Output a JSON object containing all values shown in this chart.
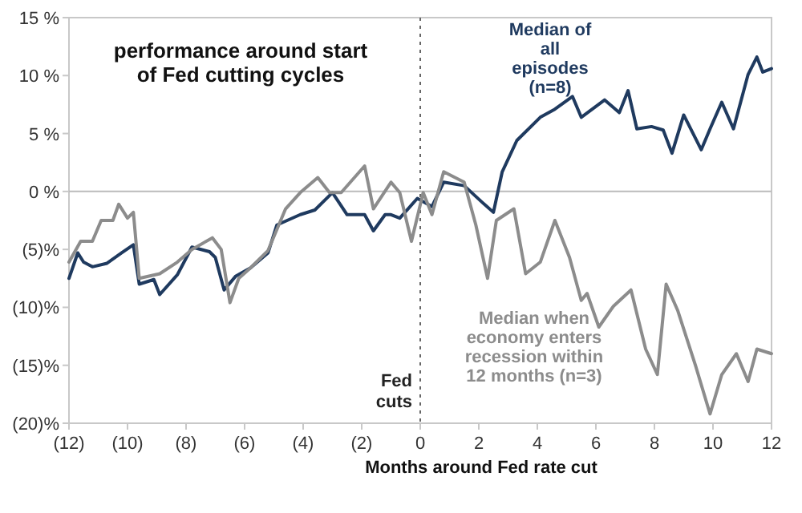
{
  "chart_data": {
    "type": "line",
    "title": "performance around start of Fed cutting cycles",
    "xlabel": "Months around Fed rate cut",
    "xlim": [
      -12,
      12
    ],
    "xticks": [
      {
        "value": -12,
        "label": "(12)"
      },
      {
        "value": -10,
        "label": "(10)"
      },
      {
        "value": -8,
        "label": "(8)"
      },
      {
        "value": -6,
        "label": "(6)"
      },
      {
        "value": -4,
        "label": "(4)"
      },
      {
        "value": -2,
        "label": "(2)"
      },
      0,
      2,
      4,
      6,
      8,
      10,
      12
    ],
    "ylim": [
      -20,
      15
    ],
    "yticks": [
      {
        "value": -20,
        "label": "(20)%"
      },
      {
        "value": -15,
        "label": "(15)%"
      },
      {
        "value": -10,
        "label": "(10)%"
      },
      {
        "value": -5,
        "label": "(5)%"
      },
      {
        "value": 0,
        "label": "0 %"
      },
      {
        "value": 5,
        "label": "5 %"
      },
      {
        "value": 10,
        "label": "10 %"
      },
      {
        "value": 15,
        "label": "15 %"
      }
    ],
    "grid": false,
    "legend": false,
    "line_style": "solid",
    "marker": "none",
    "ref_lines": [
      {
        "axis": "x",
        "value": 0,
        "label": "Fed cuts",
        "color": "#666666",
        "line_style": "dotted"
      },
      {
        "axis": "y",
        "value": 0,
        "color": "#bbbbbb",
        "line_style": "solid"
      }
    ],
    "series": [
      {
        "name": "Median of all episodes (n=8)",
        "color": "#1f3a5f",
        "x": [
          -12,
          -11.7,
          -11.5,
          -11.2,
          -10.7,
          -10.2,
          -9.8,
          -9.6,
          -9.1,
          -8.9,
          -8.3,
          -7.8,
          -7.2,
          -7,
          -6.7,
          -6.3,
          -5.8,
          -5.2,
          -4.9,
          -4.1,
          -3.6,
          -3,
          -2.5,
          -1.9,
          -1.6,
          -1.2,
          -1,
          -0.7,
          -0.1,
          0.4,
          0.8,
          1.5,
          2.1,
          2.5,
          2.8,
          3.3,
          4.1,
          4.6,
          5.2,
          5.5,
          6.3,
          6.8,
          7.1,
          7.4,
          7.9,
          8.3,
          8.6,
          9,
          9.6,
          9.9,
          10.3,
          10.7,
          11.2,
          11.5,
          11.7,
          12
        ],
        "values": [
          -7.5,
          -5.3,
          -6.1,
          -6.5,
          -6.2,
          -5.3,
          -4.6,
          -8,
          -7.6,
          -8.9,
          -7.2,
          -4.8,
          -5.2,
          -5.7,
          -8.5,
          -7.3,
          -6.6,
          -5.3,
          -2.9,
          -2,
          -1.6,
          -0.1,
          -2,
          -2,
          -3.4,
          -2,
          -2,
          -2.3,
          -0.6,
          -1.3,
          0.8,
          0.5,
          -0.9,
          -1.8,
          1.7,
          4.4,
          6.4,
          7.1,
          8.2,
          6.4,
          7.9,
          6.8,
          8.7,
          5.4,
          5.6,
          5.3,
          3.3,
          6.6,
          3.6,
          5.4,
          7.7,
          5.4,
          10.1,
          11.6,
          10.3,
          10.6
        ]
      },
      {
        "name": "Median when economy enters recession within 12 months (n=3)",
        "color": "#8c8c8c",
        "x": [
          -12,
          -11.6,
          -11.2,
          -10.9,
          -10.5,
          -10.3,
          -10,
          -9.8,
          -9.6,
          -8.9,
          -8.3,
          -7.8,
          -7.1,
          -6.8,
          -6.5,
          -6.2,
          -5.8,
          -5.2,
          -4.6,
          -4.1,
          -3.5,
          -3.1,
          -2.7,
          -1.9,
          -1.6,
          -1,
          -0.7,
          -0.3,
          0.1,
          0.4,
          0.8,
          1.5,
          1.9,
          2.3,
          2.6,
          3.2,
          3.6,
          4.1,
          4.6,
          5.1,
          5.5,
          5.7,
          6.1,
          6.6,
          7.2,
          7.7,
          8.1,
          8.4,
          8.8,
          9.4,
          9.9,
          10.3,
          10.8,
          11.2,
          11.5,
          12
        ],
        "values": [
          -6.1,
          -4.3,
          -4.3,
          -2.5,
          -2.5,
          -1.1,
          -2.3,
          -1.8,
          -7.5,
          -7.1,
          -6.1,
          -5,
          -4,
          -5,
          -9.6,
          -7.5,
          -6.6,
          -5.1,
          -1.5,
          -0.1,
          1.2,
          -0.1,
          -0.1,
          2.2,
          -1.5,
          0.8,
          -0.1,
          -4.3,
          -0.1,
          -2,
          1.7,
          0.8,
          -2.9,
          -7.5,
          -2.5,
          -1.5,
          -7.1,
          -6.1,
          -2.5,
          -5.7,
          -9.4,
          -8.8,
          -11.7,
          -9.9,
          -8.5,
          -13.6,
          -15.8,
          -8,
          -10.3,
          -15,
          -19.2,
          -15.8,
          -14,
          -16.4,
          -13.6,
          -14
        ]
      }
    ]
  }
}
